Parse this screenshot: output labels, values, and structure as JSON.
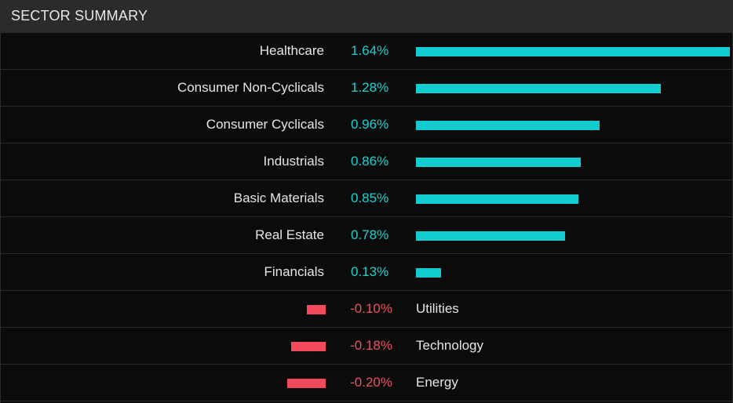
{
  "header": {
    "title": "SECTOR SUMMARY"
  },
  "colors": {
    "positive": "#12cdd0",
    "negative": "#f24a5c",
    "background": "#0b0b0b",
    "header": "#2b2b2b"
  },
  "chart_data": {
    "type": "bar",
    "orientation": "horizontal",
    "title": "SECTOR SUMMARY",
    "unit": "%",
    "categories": [
      "Healthcare",
      "Consumer Non-Cyclicals",
      "Consumer Cyclicals",
      "Industrials",
      "Basic Materials",
      "Real Estate",
      "Financials",
      "Utilities",
      "Technology",
      "Energy"
    ],
    "values": [
      1.64,
      1.28,
      0.96,
      0.86,
      0.85,
      0.78,
      0.13,
      -0.1,
      -0.18,
      -0.2
    ],
    "labels": [
      "1.64%",
      "1.28%",
      "0.96%",
      "0.86%",
      "0.85%",
      "0.78%",
      "0.13%",
      "-0.10%",
      "-0.18%",
      "-0.20%"
    ]
  }
}
